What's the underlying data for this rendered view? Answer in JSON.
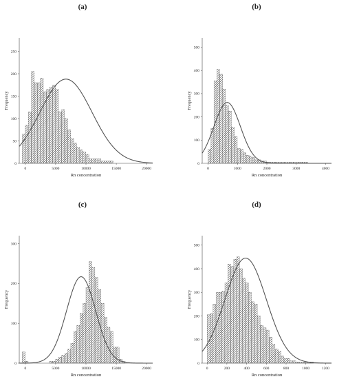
{
  "figure": {
    "panels": [
      {
        "label": "(a)"
      },
      {
        "label": "(b)"
      },
      {
        "label": "(c)"
      },
      {
        "label": "(d)"
      }
    ]
  },
  "chart_data": [
    {
      "type": "histogram",
      "panel": "(a)",
      "xlabel": "Rn concentration",
      "ylabel": "Frequency",
      "xlim": [
        -1000,
        21000
      ],
      "ylim": [
        0,
        280
      ],
      "xticks": [
        0,
        5000,
        10000,
        15000,
        20000
      ],
      "yticks": [
        0,
        50,
        100,
        150,
        200,
        250
      ],
      "bin_width": 500,
      "bin_start": -500,
      "counts": [
        65,
        85,
        115,
        205,
        180,
        180,
        190,
        160,
        165,
        170,
        175,
        165,
        115,
        120,
        100,
        75,
        55,
        45,
        35,
        30,
        25,
        20,
        10,
        10,
        10,
        10,
        5,
        5,
        5,
        5,
        0,
        0,
        0,
        0,
        0,
        0,
        0,
        0,
        0,
        0,
        0,
        0
      ],
      "fit_curve": {
        "type": "normal",
        "mean": 6700,
        "sd": 4300,
        "peak": 188
      },
      "grid": false,
      "legend": "none"
    },
    {
      "type": "histogram",
      "panel": "(b)",
      "xlabel": "Rn concentration",
      "ylabel": "Frequency",
      "xlim": [
        -200,
        4200
      ],
      "ylim": [
        0,
        540
      ],
      "xticks": [
        0,
        1000,
        2000,
        3000,
        4000
      ],
      "yticks": [
        0,
        100,
        200,
        300,
        400,
        500
      ],
      "bin_width": 100,
      "bin_start": 0,
      "counts": [
        60,
        150,
        355,
        405,
        385,
        320,
        250,
        225,
        155,
        115,
        65,
        60,
        45,
        35,
        30,
        25,
        15,
        15,
        10,
        10,
        5,
        5,
        5,
        5,
        5,
        5,
        5,
        5,
        5,
        5,
        5,
        5,
        5,
        5,
        0,
        0,
        0,
        0,
        0,
        0
      ],
      "fit_curve": {
        "type": "normal",
        "mean": 650,
        "sd": 450,
        "peak": 262
      },
      "grid": false,
      "legend": "none"
    },
    {
      "type": "histogram",
      "panel": "(c)",
      "xlabel": "Rn concentration",
      "ylabel": "Frequency",
      "xlim": [
        -1000,
        21000
      ],
      "ylim": [
        0,
        320
      ],
      "xticks": [
        0,
        5000,
        10000,
        15000,
        20000
      ],
      "yticks": [
        0,
        100,
        200,
        300
      ],
      "bin_width": 500,
      "bin_start": -500,
      "counts": [
        28,
        5,
        0,
        0,
        0,
        0,
        0,
        0,
        0,
        5,
        5,
        10,
        15,
        20,
        25,
        35,
        50,
        80,
        95,
        125,
        150,
        190,
        255,
        240,
        215,
        185,
        150,
        115,
        90,
        80,
        40,
        40,
        10,
        5,
        0,
        0,
        0,
        0,
        0,
        0,
        0,
        0
      ],
      "fit_curve": {
        "type": "normal",
        "mean": 9200,
        "sd": 2400,
        "peak": 217
      },
      "grid": false,
      "legend": "none"
    },
    {
      "type": "histogram",
      "panel": "(d)",
      "xlabel": "Rn concentration",
      "ylabel": "Frequency",
      "xlim": [
        -50,
        1260
      ],
      "ylim": [
        0,
        540
      ],
      "xticks": [
        0,
        200,
        400,
        600,
        800,
        1000,
        1200
      ],
      "yticks": [
        0,
        100,
        200,
        300,
        400,
        500
      ],
      "bin_width": 30,
      "bin_start": 0,
      "counts": [
        205,
        210,
        250,
        300,
        300,
        305,
        340,
        420,
        410,
        440,
        450,
        400,
        360,
        340,
        300,
        260,
        250,
        200,
        160,
        150,
        140,
        110,
        80,
        60,
        50,
        30,
        20,
        20,
        10,
        10,
        5,
        5,
        5,
        5,
        5,
        5,
        0,
        0,
        0,
        0,
        0,
        0
      ],
      "fit_curve": {
        "type": "normal",
        "mean": 390,
        "sd": 210,
        "peak": 445
      },
      "grid": false,
      "legend": "none"
    }
  ]
}
